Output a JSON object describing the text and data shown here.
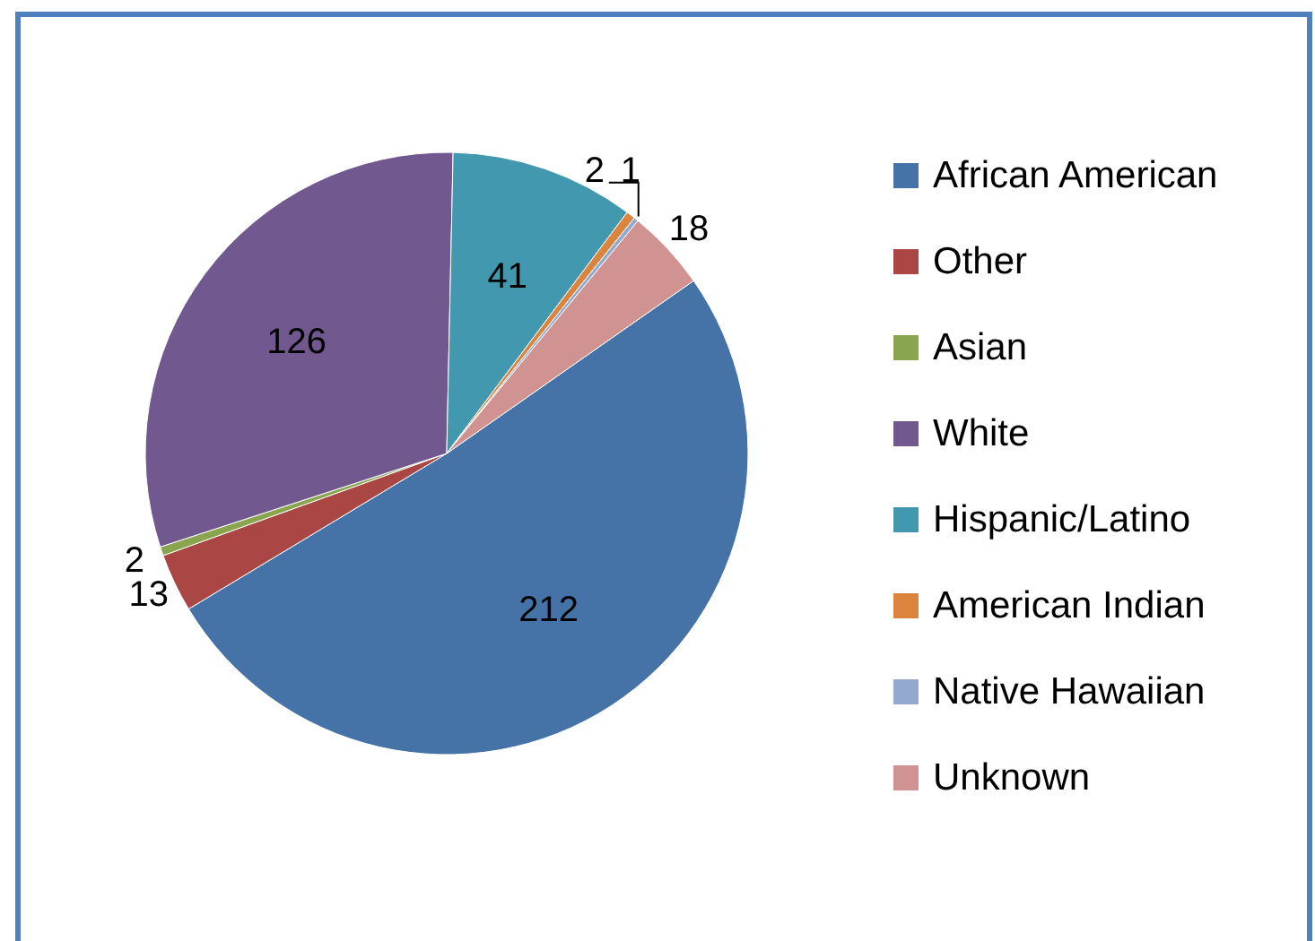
{
  "chart_data": {
    "type": "pie",
    "categories": [
      "African American",
      "Other",
      "Asian",
      "White",
      "Hispanic/Latino",
      "American Indian",
      "Native Hawaiian",
      "Unknown"
    ],
    "values": [
      212,
      13,
      2,
      126,
      41,
      2,
      1,
      18
    ],
    "colors": [
      "#4572a7",
      "#aa4643",
      "#89a54e",
      "#71588f",
      "#4198af",
      "#db843d",
      "#93a9cf",
      "#d19392"
    ],
    "data_labels": true,
    "legend": "right"
  }
}
